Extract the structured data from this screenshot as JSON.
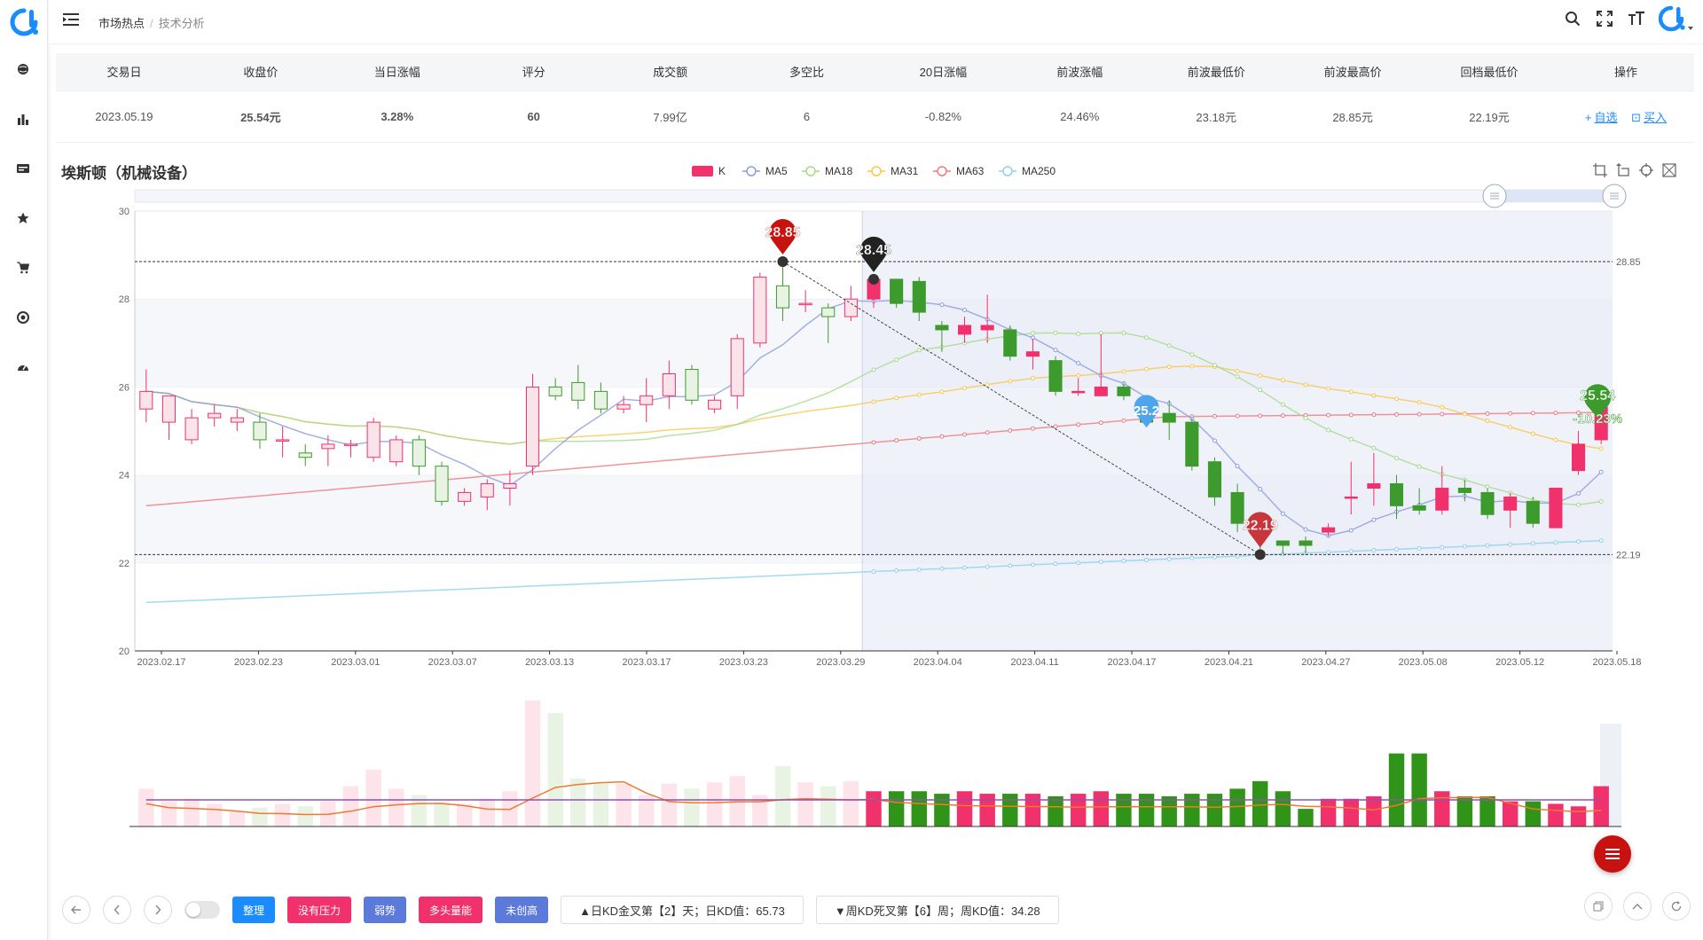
{
  "breadcrumb": {
    "first": "市场热点",
    "sep": "/",
    "second": "技术分析"
  },
  "sidebar": {
    "items": [
      "globe-icon",
      "bar-chart-icon",
      "card-icon",
      "star-icon",
      "cart-icon",
      "target-icon",
      "dashboard-icon"
    ]
  },
  "header_tools": [
    "search-icon",
    "fullscreen-icon",
    "font-size-icon",
    "brand-logo-icon"
  ],
  "summary": {
    "headers": [
      "交易日",
      "收盘价",
      "当日涨幅",
      "评分",
      "成交额",
      "多空比",
      "20日涨幅",
      "前波涨幅",
      "前波最低价",
      "前波最高价",
      "回档最低价",
      "操作"
    ],
    "trade_date": "2023.05.19",
    "close_price": "25.54元",
    "day_change": "3.28%",
    "score": "60",
    "turnover": "7.99亿",
    "long_short_ratio": "6",
    "change_20d": "-0.82%",
    "prev_wave_change": "24.46%",
    "prev_wave_low": "23.18元",
    "prev_wave_high": "28.85元",
    "pullback_low": "22.19元",
    "op_add": "自选",
    "op_buy": "买入",
    "op_plus_symbol": "+",
    "op_buy_symbol": "⊡"
  },
  "chart_title": "埃斯顿（机械设备）",
  "chart_tools": [
    "crop-icon",
    "undo-icon",
    "restore-icon",
    "save-image-icon"
  ],
  "colors": {
    "up": "#f0316b",
    "down": "#3d9a2c",
    "ma5": "#8f9cde",
    "ma18": "#a7d98f",
    "ma31": "#f7c850",
    "ma63": "#ee7b80",
    "ma250": "#8fd0ee",
    "accent_blue": "#1a8cff"
  },
  "chart_data": {
    "type": "candlestick",
    "legend": [
      "K",
      "MA5",
      "MA18",
      "MA31",
      "MA63",
      "MA250"
    ],
    "ylim": [
      20,
      30
    ],
    "yticks": [
      20,
      22,
      24,
      26,
      28,
      30
    ],
    "x_tick_labels": [
      "2023.02.17",
      "2023.02.23",
      "2023.03.01",
      "2023.03.07",
      "2023.03.13",
      "2023.03.17",
      "2023.03.23",
      "2023.03.29",
      "2023.04.04",
      "2023.04.11",
      "2023.04.17",
      "2023.04.21",
      "2023.04.27",
      "2023.05.08",
      "2023.05.12",
      "2023.05.18"
    ],
    "ohlc": [
      [
        25.5,
        25.9,
        25.2,
        26.4
      ],
      [
        25.2,
        25.8,
        24.8,
        25.8
      ],
      [
        24.8,
        25.3,
        24.7,
        25.5
      ],
      [
        25.3,
        25.4,
        25.1,
        25.6
      ],
      [
        25.2,
        25.3,
        25.0,
        25.5
      ],
      [
        25.2,
        24.8,
        24.6,
        25.4
      ],
      [
        24.8,
        24.8,
        24.4,
        25.1
      ],
      [
        24.5,
        24.4,
        24.2,
        24.7
      ],
      [
        24.6,
        24.7,
        24.2,
        24.9
      ],
      [
        24.7,
        24.7,
        24.4,
        24.8
      ],
      [
        24.4,
        25.2,
        24.3,
        25.3
      ],
      [
        24.3,
        24.8,
        24.2,
        24.9
      ],
      [
        24.8,
        24.2,
        24.0,
        24.9
      ],
      [
        24.2,
        23.4,
        23.3,
        24.3
      ],
      [
        23.4,
        23.6,
        23.3,
        23.7
      ],
      [
        23.5,
        23.8,
        23.2,
        23.9
      ],
      [
        23.7,
        23.8,
        23.3,
        24.1
      ],
      [
        24.2,
        26.0,
        24.0,
        26.3
      ],
      [
        26.0,
        25.8,
        25.7,
        26.2
      ],
      [
        26.1,
        25.7,
        25.5,
        26.5
      ],
      [
        25.9,
        25.5,
        25.4,
        26.1
      ],
      [
        25.5,
        25.6,
        25.4,
        25.8
      ],
      [
        25.6,
        25.8,
        25.2,
        26.2
      ],
      [
        25.8,
        26.3,
        25.5,
        26.6
      ],
      [
        26.4,
        25.7,
        25.6,
        26.5
      ],
      [
        25.5,
        25.7,
        25.4,
        25.8
      ],
      [
        25.8,
        27.1,
        25.5,
        27.2
      ],
      [
        27.0,
        28.5,
        26.9,
        28.6
      ],
      [
        28.3,
        27.8,
        27.5,
        28.85
      ],
      [
        27.9,
        27.9,
        27.7,
        28.2
      ],
      [
        27.8,
        27.6,
        27.0,
        27.9
      ],
      [
        27.6,
        28.0,
        27.5,
        28.3
      ],
      [
        28.0,
        28.45,
        27.8,
        28.45
      ],
      [
        28.45,
        27.9,
        27.8,
        28.45
      ],
      [
        28.4,
        27.7,
        27.5,
        28.5
      ],
      [
        27.4,
        27.3,
        26.8,
        27.5
      ],
      [
        27.2,
        27.4,
        27.0,
        27.6
      ],
      [
        27.3,
        27.4,
        27.0,
        28.1
      ],
      [
        27.3,
        26.7,
        26.6,
        27.4
      ],
      [
        26.7,
        26.8,
        26.4,
        27.1
      ],
      [
        26.6,
        25.9,
        25.8,
        26.7
      ],
      [
        25.9,
        25.9,
        25.8,
        26.2
      ],
      [
        25.8,
        26.0,
        25.8,
        27.2
      ],
      [
        26.0,
        25.8,
        25.7,
        26.1
      ],
      [
        25.7,
        25.2,
        25.1,
        25.8
      ],
      [
        25.4,
        25.2,
        24.8,
        25.7
      ],
      [
        25.2,
        24.2,
        24.1,
        25.3
      ],
      [
        24.3,
        23.5,
        23.3,
        24.4
      ],
      [
        23.6,
        22.9,
        22.7,
        23.8
      ],
      [
        22.9,
        22.6,
        22.19,
        23.0
      ],
      [
        22.5,
        22.4,
        22.2,
        22.5
      ],
      [
        22.5,
        22.4,
        22.2,
        22.6
      ],
      [
        22.7,
        22.8,
        22.6,
        22.9
      ],
      [
        23.5,
        23.5,
        23.1,
        24.3
      ],
      [
        23.7,
        23.8,
        23.3,
        24.5
      ],
      [
        23.8,
        23.3,
        23.0,
        24.0
      ],
      [
        23.3,
        23.2,
        23.1,
        23.7
      ],
      [
        23.2,
        23.7,
        23.1,
        24.2
      ],
      [
        23.7,
        23.6,
        23.4,
        23.9
      ],
      [
        23.6,
        23.1,
        23.0,
        23.7
      ],
      [
        23.2,
        23.5,
        22.8,
        23.6
      ],
      [
        23.4,
        22.9,
        22.8,
        23.5
      ],
      [
        22.8,
        23.7,
        22.8,
        23.7
      ],
      [
        24.1,
        24.7,
        24.0,
        25.0
      ],
      [
        24.8,
        25.54,
        24.7,
        25.6
      ]
    ],
    "annotations": [
      {
        "label": "28.85",
        "type": "max"
      },
      {
        "label": "28.45",
        "type": "start"
      },
      {
        "label": "25.2",
        "type": "mark"
      },
      {
        "label": "22.19",
        "type": "min"
      },
      {
        "label": "25.54",
        "type": "last"
      },
      {
        "label": "-10.23%",
        "type": "change"
      }
    ],
    "reference_lines": [
      28.85,
      22.19
    ]
  },
  "bottom_bar": {
    "tags": [
      {
        "label": "整理",
        "color": "#1a8cff"
      },
      {
        "label": "没有压力",
        "color": "#f0316b"
      },
      {
        "label": "弱势",
        "color": "#5b7ad9"
      },
      {
        "label": "多头量能",
        "color": "#f0316b"
      },
      {
        "label": "未创高",
        "color": "#5b7ad9"
      }
    ],
    "info1": "▲日KD金叉第【2】天；日KD值：65.73",
    "info2": "▼周KD死叉第【6】周；周KD值：34.28"
  }
}
